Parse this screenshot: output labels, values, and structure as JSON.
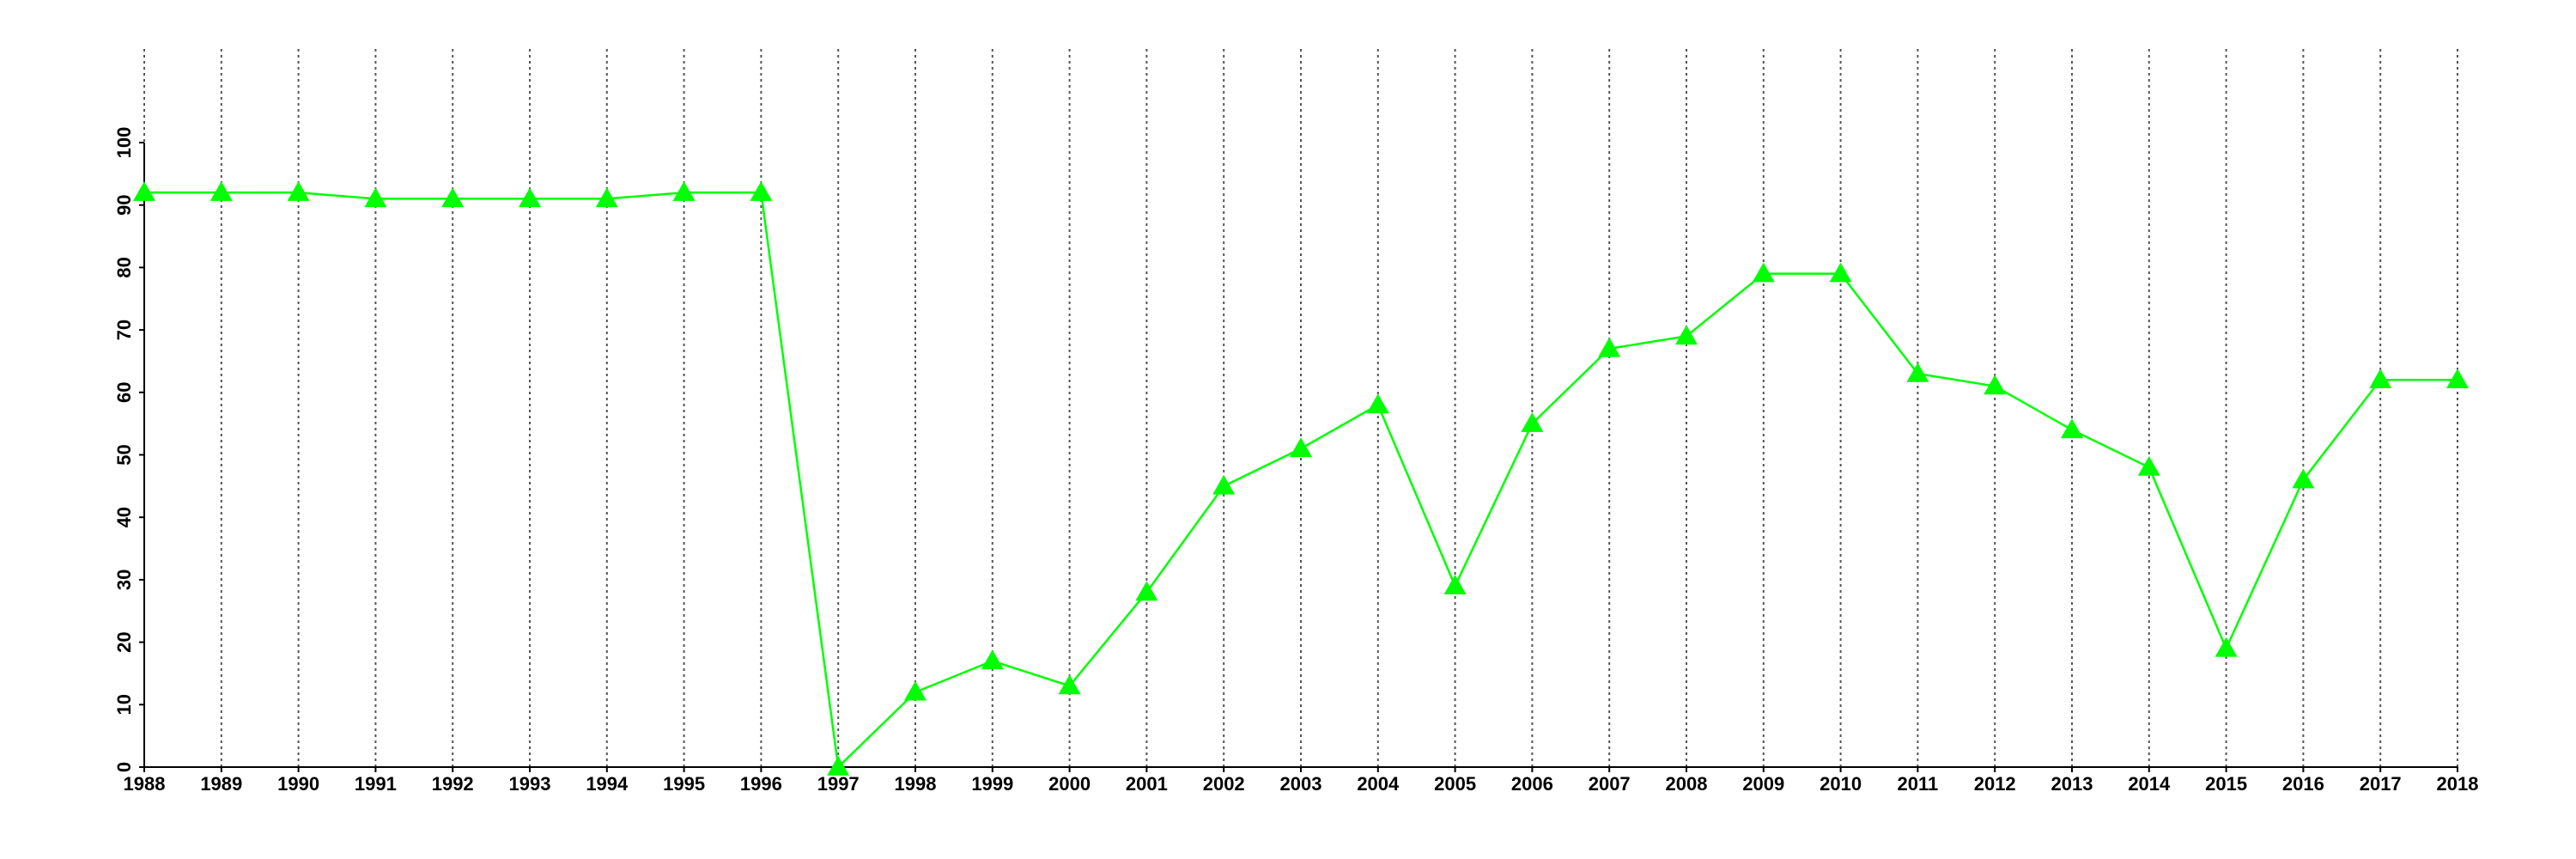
{
  "chart_data": {
    "type": "line",
    "x": [
      1988,
      1989,
      1990,
      1991,
      1992,
      1993,
      1994,
      1995,
      1996,
      1997,
      1998,
      1999,
      2000,
      2001,
      2002,
      2003,
      2004,
      2005,
      2006,
      2007,
      2008,
      2009,
      2010,
      2011,
      2012,
      2013,
      2014,
      2015,
      2016,
      2017,
      2018
    ],
    "series": [
      {
        "color": "#00ff00",
        "values": [
          92,
          92,
          92,
          91,
          91,
          91,
          91,
          92,
          92,
          0,
          12,
          17,
          13,
          28,
          45,
          51,
          58,
          29,
          55,
          67,
          69,
          79,
          79,
          63,
          61,
          54,
          48,
          19,
          46,
          62,
          62
        ]
      }
    ],
    "xlim": [
      1988,
      2018
    ],
    "xticks": [
      1988,
      1989,
      1990,
      1991,
      1992,
      1993,
      1994,
      1995,
      1996,
      1997,
      1998,
      1999,
      2000,
      2001,
      2002,
      2003,
      2004,
      2005,
      2006,
      2007,
      2008,
      2009,
      2010,
      2011,
      2012,
      2013,
      2014,
      2015,
      2016,
      2017,
      2018
    ],
    "ylim": [
      0,
      100
    ],
    "yticks": [
      0,
      10,
      20,
      30,
      40,
      50,
      60,
      70,
      80,
      90,
      100
    ],
    "grid": true
  }
}
